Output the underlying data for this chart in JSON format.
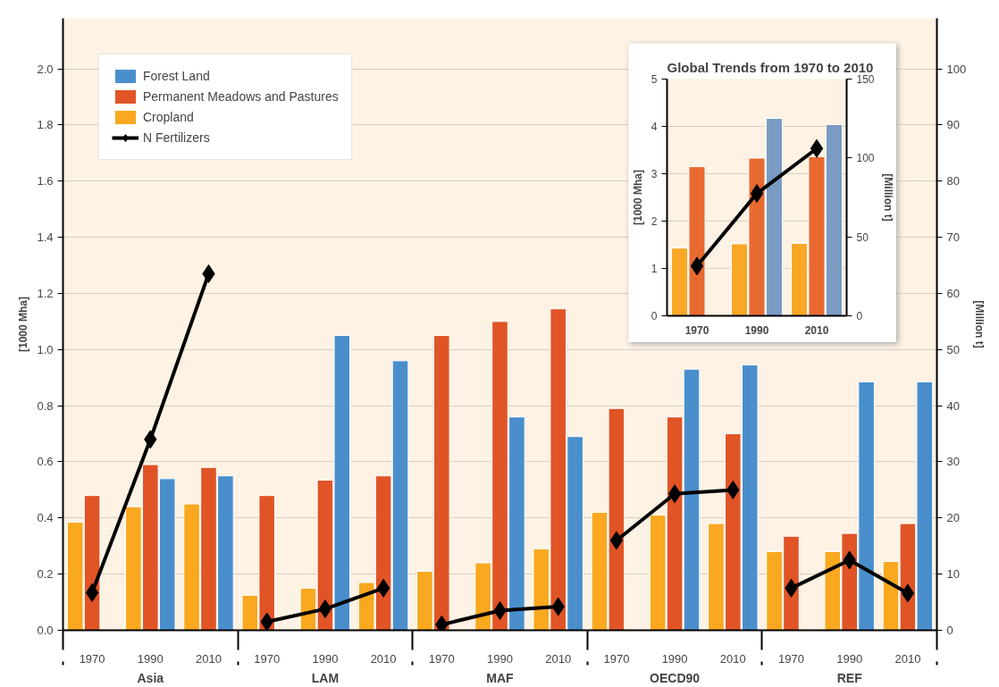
{
  "chart_data": [
    {
      "type": "bar",
      "categories": [
        "1970",
        "1990",
        "2010",
        "1970",
        "1990",
        "2010",
        "1970",
        "1990",
        "2010",
        "1970",
        "1990",
        "2010",
        "1970",
        "1990",
        "2010"
      ],
      "series": [
        {
          "name": "Cropland",
          "color": "#f9a81f",
          "values": [
            0.385,
            0.44,
            0.45,
            0.125,
            0.15,
            0.17,
            0.21,
            0.24,
            0.29,
            0.42,
            0.41,
            0.38,
            0.28,
            0.28,
            0.245
          ]
        },
        {
          "name": "Permanent Meadows and Pastures",
          "color": "#e05426",
          "values": [
            0.48,
            0.59,
            0.58,
            0.48,
            0.535,
            0.55,
            1.05,
            1.1,
            1.145,
            0.79,
            0.76,
            0.7,
            0.335,
            0.345,
            0.38
          ]
        },
        {
          "name": "Forest Land",
          "color": "#4a8fcc",
          "values": [
            null,
            0.54,
            0.55,
            null,
            1.05,
            0.96,
            null,
            0.76,
            0.69,
            null,
            0.93,
            0.945,
            null,
            0.885,
            0.885
          ]
        },
        {
          "name": "N Fertilizers",
          "type": "line",
          "axis": "y2",
          "color": "#000000",
          "marker": "diamond",
          "values": [
            6.7,
            34,
            63.5,
            1.5,
            3.8,
            7.5,
            1.0,
            3.5,
            4.2,
            16,
            24.3,
            25,
            7.5,
            12.5,
            6.6
          ]
        }
      ],
      "ylabel": "[1000 Mha]",
      "y2label": "[Million t]",
      "ylim": [
        0,
        2.18
      ],
      "yticks": [
        {
          "value": 0,
          "label": "0.0"
        },
        {
          "value": 0.2,
          "label": "0.2"
        },
        {
          "value": 0.4,
          "label": "0.4"
        },
        {
          "value": 0.6,
          "label": "0.6"
        },
        {
          "value": 0.8,
          "label": "0.8"
        },
        {
          "value": 1.0,
          "label": "1.0"
        },
        {
          "value": 1.2,
          "label": "1.2"
        },
        {
          "value": 1.4,
          "label": "1.4"
        },
        {
          "value": 1.6,
          "label": "1.6"
        },
        {
          "value": 1.8,
          "label": "1.8"
        },
        {
          "value": 2.0,
          "label": "2.0"
        }
      ],
      "y2lim": [
        0,
        109
      ],
      "y2ticks": [
        0,
        10,
        20,
        30,
        40,
        50,
        60,
        70,
        80,
        90,
        100
      ],
      "grid": "y",
      "legend": "top left",
      "annotations": [
        "Asia",
        "LAM",
        "MAF",
        "OECD90",
        "REF"
      ]
    },
    {
      "type": "bar",
      "title": "Global Trends from 1970 to 2010",
      "categories": [
        "1970",
        "1990",
        "2010"
      ],
      "series": [
        {
          "color": "#f9a825",
          "values": [
            1.43,
            1.52,
            1.53
          ]
        },
        {
          "color": "#e86a30",
          "values": [
            3.15,
            3.33,
            3.36
          ]
        },
        {
          "color": "#7a9bc2",
          "values": [
            null,
            4.17,
            4.04
          ]
        },
        {
          "type": "line",
          "axis": "y2",
          "color": "#000000",
          "marker": "diamond",
          "values": [
            31.5,
            77.5,
            106
          ]
        }
      ],
      "ylabel": "[1000 Mha]",
      "y2label": "[Million t]",
      "ylim": [
        0,
        5
      ],
      "yticks": [
        0,
        1,
        2,
        3,
        4,
        5
      ],
      "y2lim": [
        0,
        150
      ],
      "y2ticks": [
        0,
        50,
        100,
        150
      ],
      "grid": "y"
    }
  ]
}
